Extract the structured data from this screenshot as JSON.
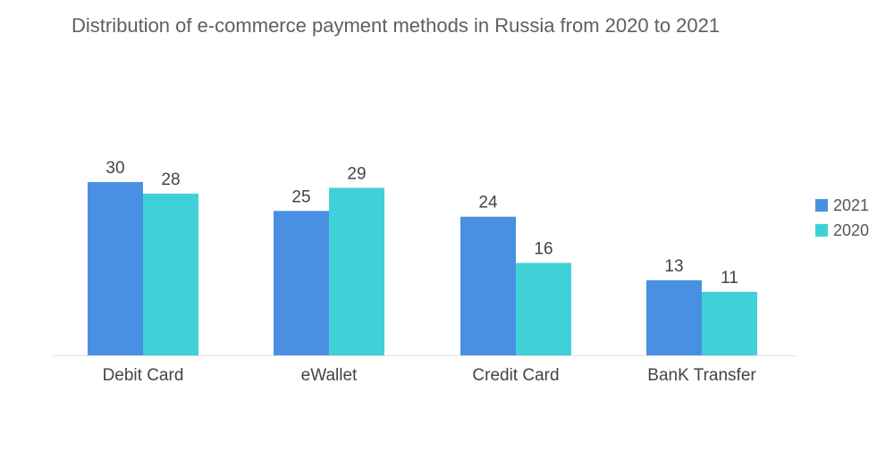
{
  "chart_data": {
    "type": "bar",
    "title": "Distribution of e-commerce payment methods in Russia from 2020 to 2021",
    "categories": [
      "Debit Card",
      "eWallet",
      "Credit Card",
      "BanK Transfer"
    ],
    "series": [
      {
        "name": "2021",
        "values": [
          30,
          25,
          24,
          13
        ],
        "color": "#4a90e2"
      },
      {
        "name": "2020",
        "values": [
          28,
          29,
          16,
          11
        ],
        "color": "#3fd1d8"
      }
    ],
    "xlabel": "",
    "ylabel": "",
    "ylim": [
      0,
      30
    ],
    "grid": false,
    "legend_position": "right"
  }
}
